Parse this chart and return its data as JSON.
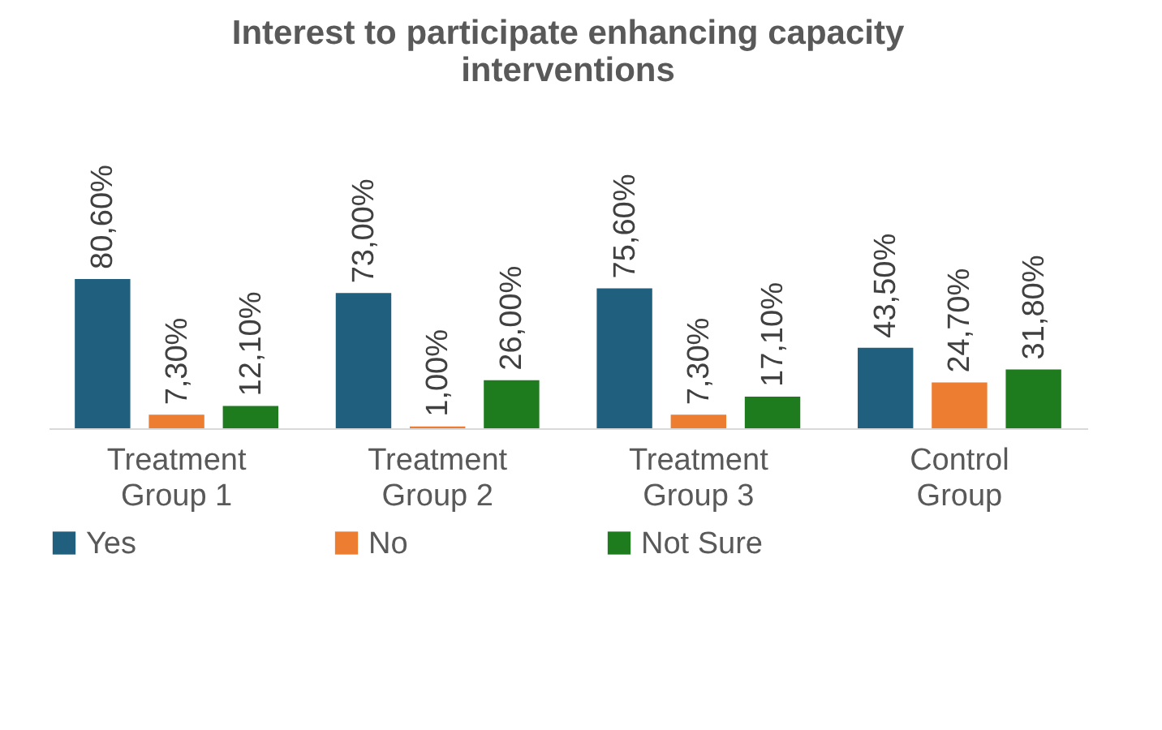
{
  "chart_data": {
    "type": "bar",
    "title": "Interest to participate enhancing capacity interventions",
    "categories": [
      "Treatment Group 1",
      "Treatment Group 2",
      "Treatment Group 3",
      "Control Group"
    ],
    "series": [
      {
        "name": "Yes",
        "color": "#215f7e",
        "values": [
          80.6,
          73.0,
          75.6,
          43.5
        ],
        "value_labels": [
          "80,60%",
          "73,00%",
          "75,60%",
          "43,50%"
        ]
      },
      {
        "name": "No",
        "color": "#ed7d31",
        "values": [
          7.3,
          1.0,
          7.3,
          24.7
        ],
        "value_labels": [
          "7,30%",
          "1,00%",
          "7,30%",
          "24,70%"
        ]
      },
      {
        "name": "Not Sure",
        "color": "#1e7b1e",
        "values": [
          12.1,
          26.0,
          17.1,
          31.8
        ],
        "value_labels": [
          "12,10%",
          "26,00%",
          "17,10%",
          "31,80%"
        ]
      }
    ],
    "legend": "bottom"
  }
}
